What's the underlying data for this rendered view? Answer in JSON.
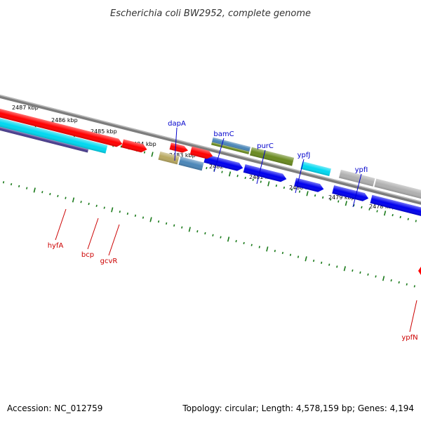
{
  "title": "Escherichia coli BW2952, complete genome",
  "footer": {
    "accession": "Accession: NC_012759",
    "summary": "Topology: circular; Length: 4,578,159 bp; Genes: 4,194"
  },
  "colors": {
    "tick": "#1a7a1a",
    "backbone": "#7d7d7d",
    "label_blue": "#0000cc",
    "label_red": "#cc0000",
    "red": "#ff0000",
    "cyan": "#00d8f0",
    "navy": "#4a3d8f",
    "tan": "#b8a860",
    "steel": "#4a86b8",
    "olive": "#6a8a20",
    "gray": "#b0b0b0",
    "blue": "#0000ee"
  },
  "ticks": [
    {
      "label": "2487 kbp"
    },
    {
      "label": "2486 kbp"
    },
    {
      "label": "2485 kbp"
    },
    {
      "label": "2484 kbp"
    },
    {
      "label": "2483 kbp"
    },
    {
      "label": "2482 kbp"
    },
    {
      "label": "2481 kbp"
    },
    {
      "label": "2480 kbp"
    },
    {
      "label": "2479 kbp"
    },
    {
      "label": "2478 kbp"
    }
  ],
  "gene_labels": [
    {
      "text": "dapA",
      "color": "label_blue"
    },
    {
      "text": "bamC",
      "color": "label_blue"
    },
    {
      "text": "purC",
      "color": "label_blue"
    },
    {
      "text": "ypfJ",
      "color": "label_blue"
    },
    {
      "text": "ypfI",
      "color": "label_blue"
    },
    {
      "text": "hyfA",
      "color": "label_red"
    },
    {
      "text": "bcp",
      "color": "label_red"
    },
    {
      "text": "gcvR",
      "color": "label_red"
    },
    {
      "text": "ypfN",
      "color": "label_red"
    }
  ]
}
